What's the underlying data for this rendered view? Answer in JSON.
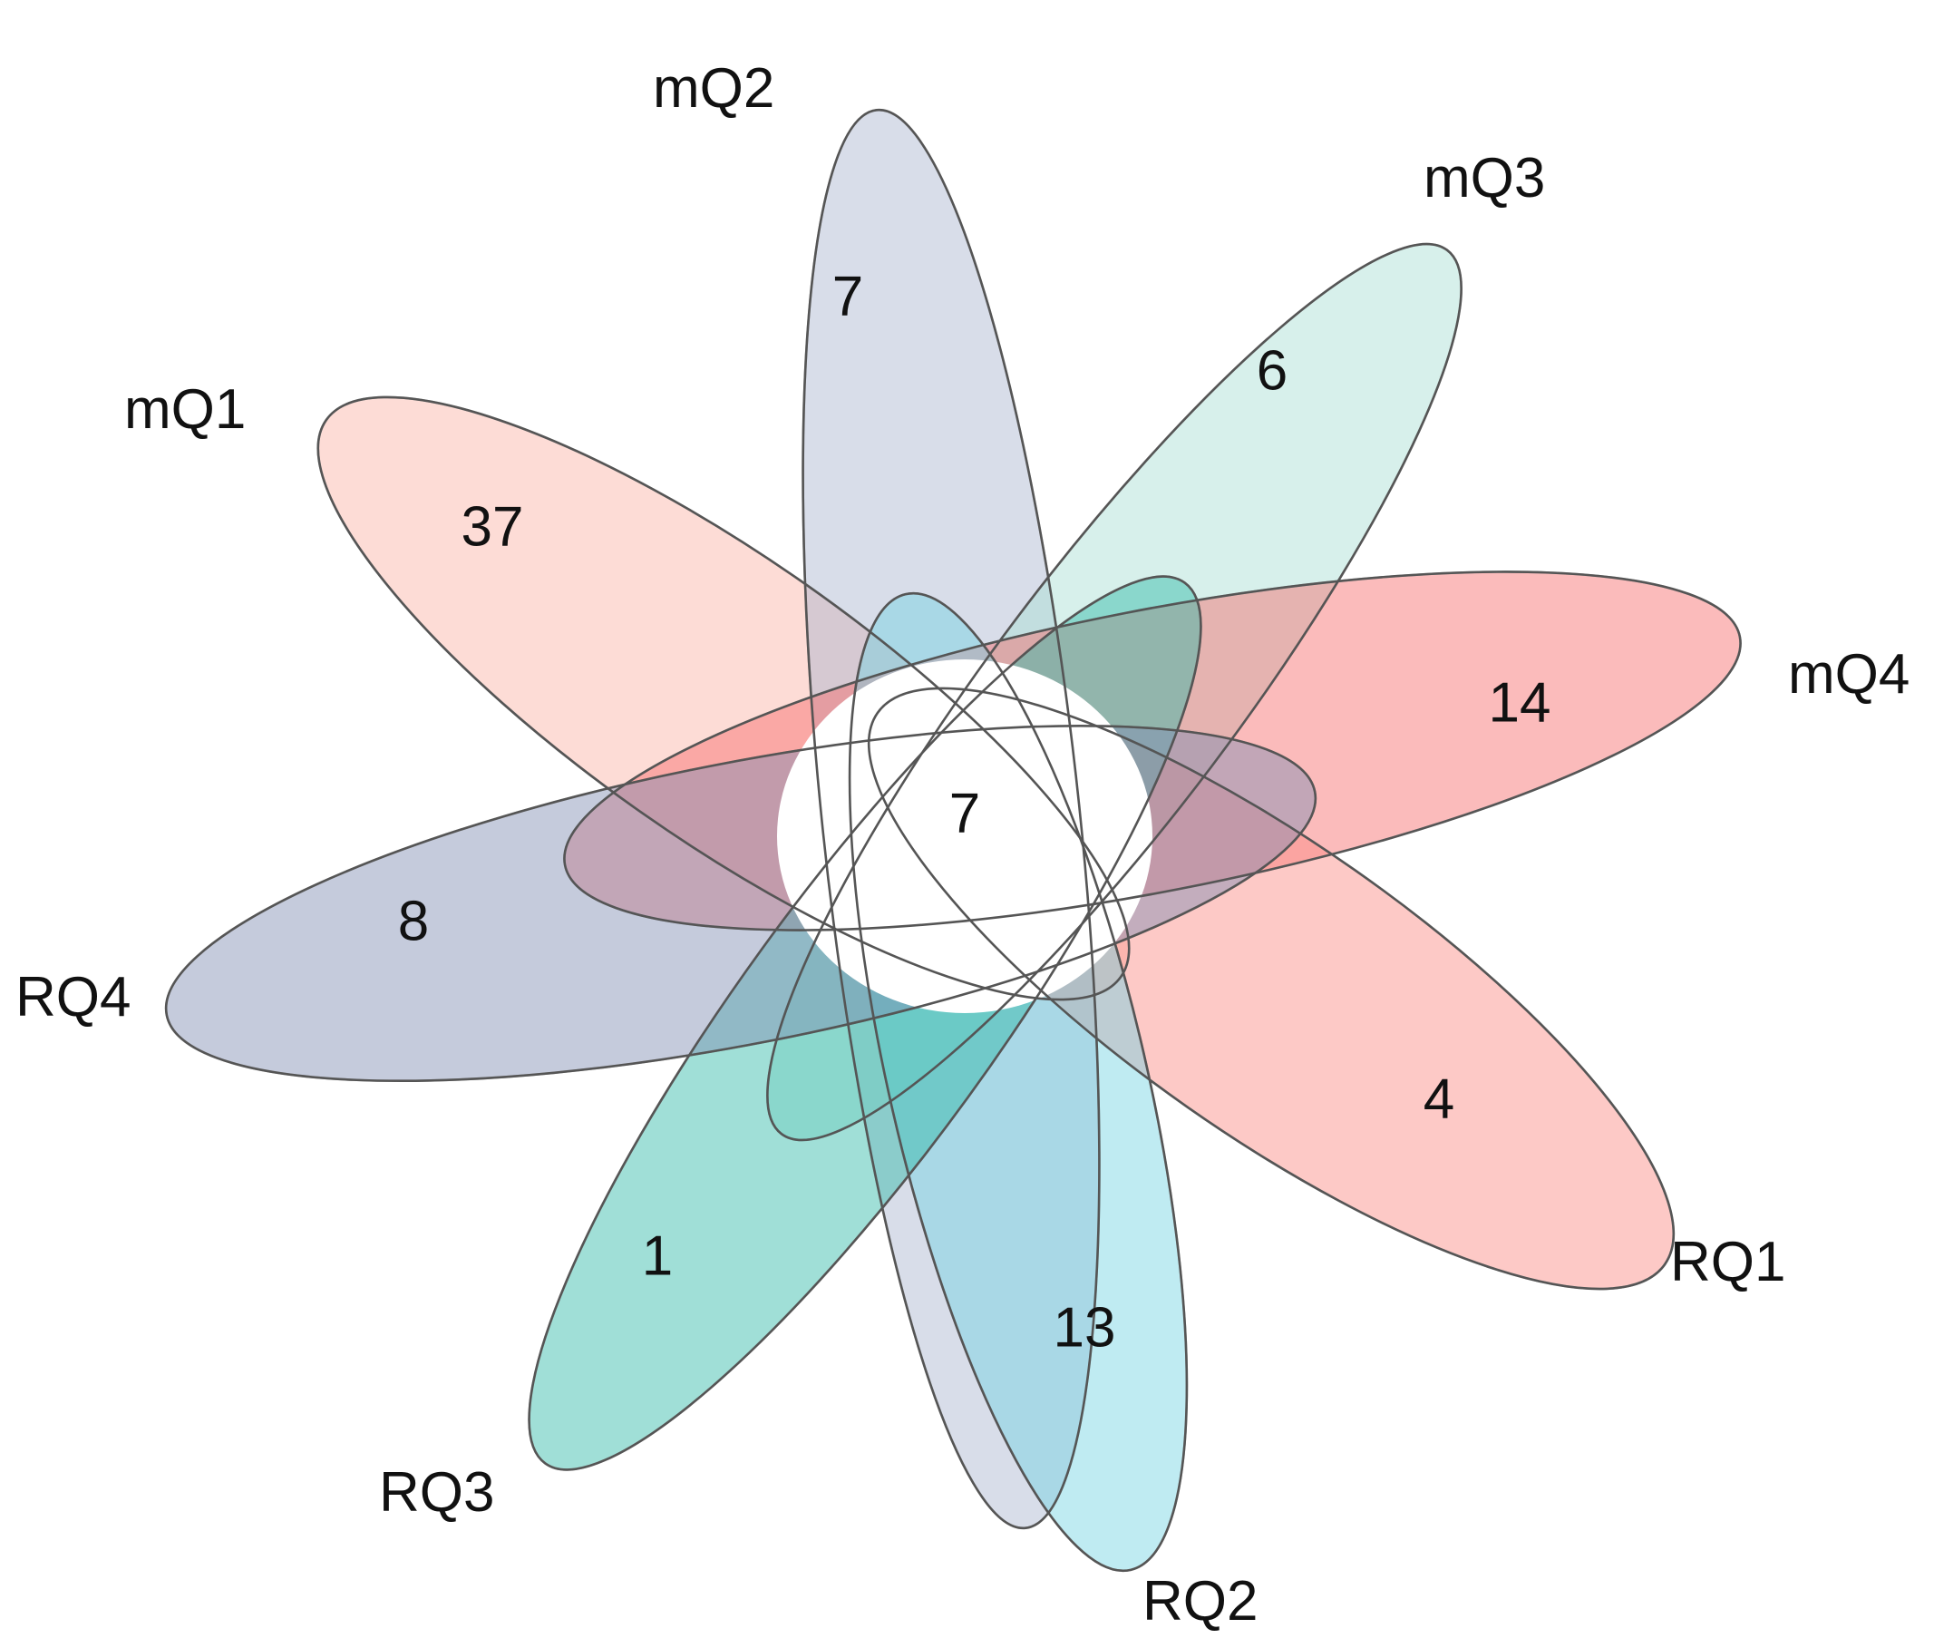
{
  "sets": [
    {
      "id": "mQ1",
      "label": "mQ1",
      "unique_count": "37",
      "color": "#fcb2a6"
    },
    {
      "id": "mQ2",
      "label": "mQ2",
      "unique_count": "7",
      "color": "#a9b4cf"
    },
    {
      "id": "mQ3",
      "label": "mQ3",
      "unique_count": "6",
      "color": "#a8e0d5"
    },
    {
      "id": "mQ4",
      "label": "mQ4",
      "unique_count": "14",
      "color": "#f76a6a"
    },
    {
      "id": "RQ1",
      "label": "RQ1",
      "unique_count": "4",
      "color": "#fb8a82"
    },
    {
      "id": "RQ2",
      "label": "RQ2",
      "unique_count": "13",
      "color": "#72d4e3"
    },
    {
      "id": "RQ3",
      "label": "RQ3",
      "unique_count": "1",
      "color": "#2fb9a8"
    },
    {
      "id": "RQ4",
      "label": "RQ4",
      "unique_count": "8",
      "color": "#7f8db3"
    }
  ],
  "core": {
    "label": "7",
    "color": "#ffffff"
  },
  "stroke_color": "#555555"
}
